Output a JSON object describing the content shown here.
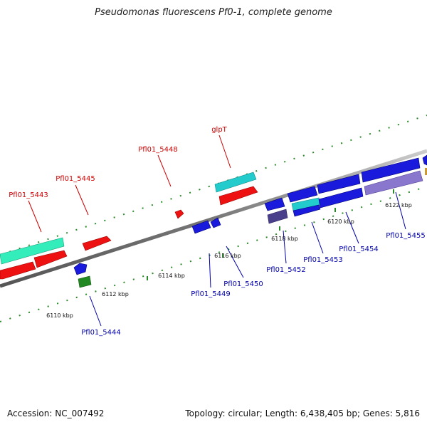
{
  "title": "Pseudomonas fluorescens Pf0-1, complete genome",
  "footer": {
    "accession": "Accession: NC_007492",
    "stats": "Topology: circular; Length: 6,438,405 bp; Genes: 5,816"
  },
  "colors": {
    "forward_label": "#cc0000",
    "reverse_label": "#0000aa",
    "backbone": "#888888",
    "ticks": "#228822",
    "red_gene": "#ee1111",
    "blue_gene": "#1a1add",
    "cyan_gene": "#22cccc",
    "aquamarine_gene": "#33eebb",
    "green_gene": "#228822",
    "slate_gene": "#4a3f8a",
    "lavender_gene": "#8877cc"
  },
  "kbp_labels": [
    "6110 kbp",
    "6112 kbp",
    "6114 kbp",
    "6116 kbp",
    "6118 kbp",
    "6120 kbp",
    "6122 kbp"
  ],
  "gene_labels": {
    "forward": [
      "Pfl01_5443",
      "Pfl01_5445",
      "Pfl01_5448",
      "glpT"
    ],
    "reverse": [
      "Pfl01_5444",
      "Pfl01_5449",
      "Pfl01_5450",
      "Pfl01_5452",
      "Pfl01_5453",
      "Pfl01_5454",
      "Pfl01_5455"
    ]
  }
}
